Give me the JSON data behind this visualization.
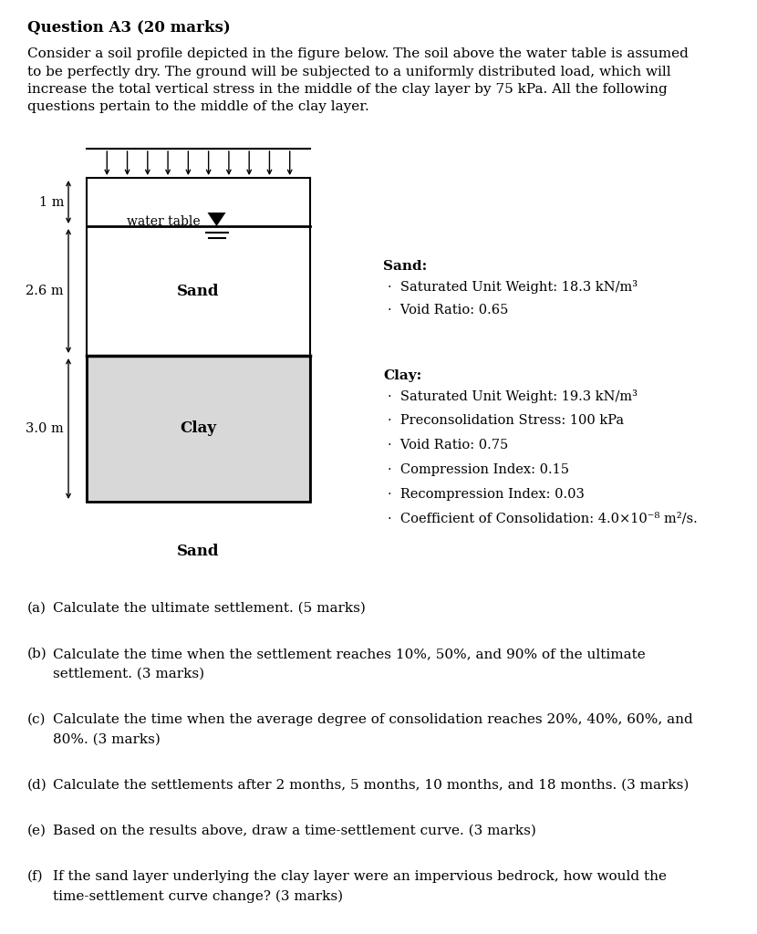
{
  "title": "Question A3 (20 marks)",
  "intro_text": "Consider a soil profile depicted in the figure below. The soil above the water table is assumed\nto be perfectly dry. The ground will be subjected to a uniformly distributed load, which will\nincrease the total vertical stress in the middle of the clay layer by 75 kPa. All the following\nquestions pertain to the middle of the clay layer.",
  "bg_color": "#ffffff",
  "diagram": {
    "clay_color": "#d8d8d8",
    "n_load_arrows": 10,
    "label_1m": "1 m",
    "label_2p6m": "2.6 m",
    "label_3p0m": "3.0 m",
    "label_sand_upper": "Sand",
    "label_clay": "Clay",
    "label_sand_lower": "Sand",
    "water_table_label": "water table"
  },
  "sand_props_title": "Sand:",
  "sand_props": [
    "Saturated Unit Weight: 18.3 kN/m³",
    "Void Ratio: 0.65"
  ],
  "clay_props_title": "Clay:",
  "clay_props": [
    "Saturated Unit Weight: 19.3 kN/m³",
    "Preconsolidation Stress: 100 kPa",
    "Void Ratio: 0.75",
    "Compression Index: 0.15",
    "Recompression Index: 0.03",
    "Coefficient of Consolidation: 4.0×10⁻⁸ m²/s."
  ],
  "questions": [
    [
      "(a)",
      "Calculate the ultimate settlement. (5 marks)",
      false
    ],
    [
      "(b)",
      "Calculate the time when the settlement reaches 10%, 50%, and 90% of the ultimate\nsettlement. (3 marks)",
      false
    ],
    [
      "(c)",
      "Calculate the time when the average degree of consolidation reaches 20%, 40%, 60%, and\n80%. (3 marks)",
      false
    ],
    [
      "(d)",
      "Calculate the settlements after 2 months, 5 months, 10 months, and 18 months. (3 marks)",
      false
    ],
    [
      "(e)",
      "Based on the results above, draw a time-settlement curve. (3 marks)",
      false
    ],
    [
      "(f)",
      "If the sand layer underlying the clay layer were an impervious bedrock, how would the\ntime-settlement curve change? (3 marks)",
      false
    ]
  ]
}
